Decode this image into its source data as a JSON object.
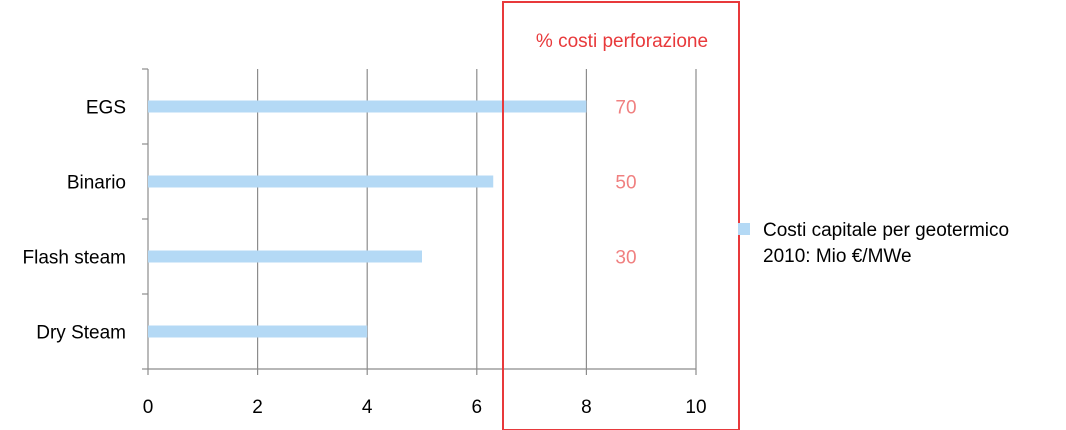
{
  "chart_data": {
    "type": "bar",
    "orientation": "horizontal",
    "categories": [
      "EGS",
      "Binario",
      "Flash steam",
      "Dry Steam"
    ],
    "series": [
      {
        "name": "Costi capitale per geotermico 2010: Mio €/MWe",
        "values": [
          8,
          6.3,
          5,
          4
        ],
        "color": "#b4d9f5"
      }
    ],
    "xlim": [
      0,
      10
    ],
    "xticks": [
      "0",
      "2",
      "4",
      "6",
      "8",
      "10"
    ],
    "grid": "vertical",
    "legend_position": "right",
    "legend_lines": [
      "Costi capitale per geotermico",
      "2010: Mio €/MWe"
    ],
    "annotation": {
      "title": "% costi perforazione",
      "values": [
        "70",
        "50",
        "30"
      ],
      "color": "#e8393b"
    }
  }
}
